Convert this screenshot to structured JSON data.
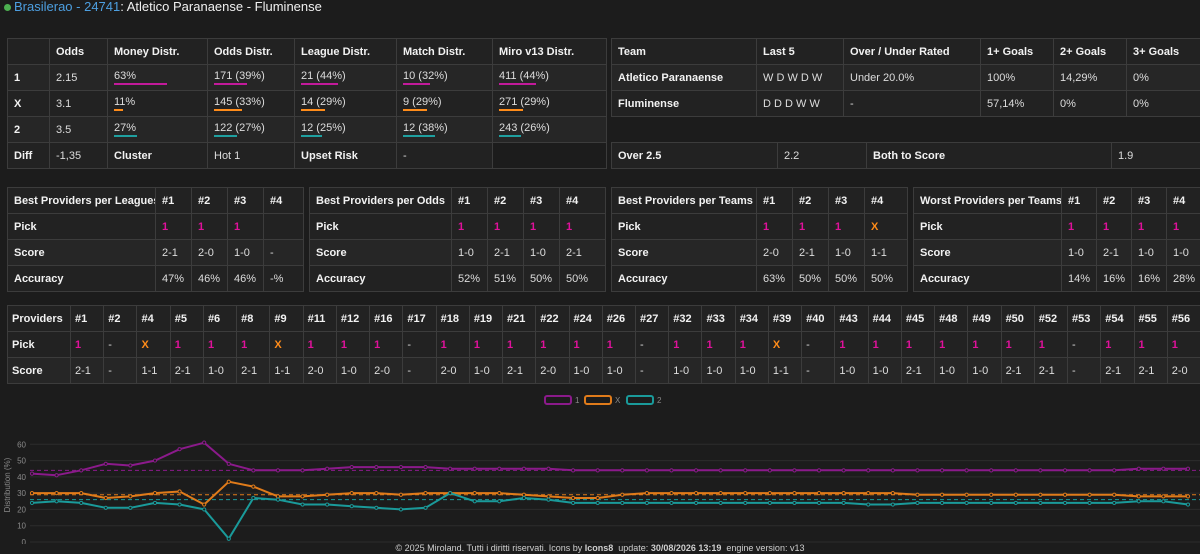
{
  "header": {
    "league": "Brasilerao",
    "match_id": "24741",
    "match": "Atletico Paranaense - Fluminense"
  },
  "odds_table": {
    "headers": [
      "",
      "Odds",
      "Money Distr.",
      "Odds Distr.",
      "League Distr.",
      "Match Distr.",
      "Miro v13 Distr."
    ],
    "rows": [
      {
        "label": "1",
        "odds": "2.15",
        "money": "63%",
        "odds_distr": "171 (39%)",
        "league": "21 (44%)",
        "match": "10 (32%)",
        "miro": "411 (44%)"
      },
      {
        "label": "X",
        "odds": "3.1",
        "money": "11%",
        "odds_distr": "145 (33%)",
        "league": "14 (29%)",
        "match": "9 (29%)",
        "miro": "271 (29%)"
      },
      {
        "label": "2",
        "odds": "3.5",
        "money": "27%",
        "odds_distr": "122 (27%)",
        "league": "12 (25%)",
        "match": "12 (38%)",
        "miro": "243 (26%)"
      }
    ],
    "bar_fractions": [
      [
        0.63,
        0.39,
        0.44,
        0.32,
        0.44
      ],
      [
        0.11,
        0.33,
        0.29,
        0.29,
        0.29
      ],
      [
        0.27,
        0.27,
        0.25,
        0.38,
        0.26
      ]
    ],
    "diff_row": {
      "label": "Diff",
      "value": "-1,35",
      "cluster_label": "Cluster",
      "cluster_value": "Hot 1",
      "upset_label": "Upset Risk",
      "upset_value": "-"
    }
  },
  "team_table": {
    "headers": [
      "Team",
      "Last 5",
      "Over / Under Rated",
      "1+ Goals",
      "2+ Goals",
      "3+ Goals"
    ],
    "rows": [
      {
        "team": "Atletico Paranaense",
        "last5": "W D W D W",
        "rated": "Under 20.0%",
        "g1": "100%",
        "g2": "14,29%",
        "g3": "0%"
      },
      {
        "team": "Fluminense",
        "last5": "D D D W W",
        "rated": "-",
        "g1": "57,14%",
        "g2": "0%",
        "g3": "0%"
      }
    ]
  },
  "over_table": {
    "over_label": "Over 2.5",
    "over_value": "2.2",
    "bts_label": "Both to Score",
    "bts_value": "1.9"
  },
  "provider_tables": [
    {
      "title": "Best Providers per Leagues",
      "cols": [
        "#1",
        "#2",
        "#3",
        "#4"
      ],
      "picks": [
        "1",
        "1",
        "1",
        ""
      ],
      "scores": [
        "2-1",
        "2-0",
        "1-0",
        "-"
      ],
      "accuracy": [
        "47%",
        "46%",
        "46%",
        "-%"
      ]
    },
    {
      "title": "Best Providers per Odds",
      "cols": [
        "#1",
        "#2",
        "#3",
        "#4"
      ],
      "picks": [
        "1",
        "1",
        "1",
        "1"
      ],
      "scores": [
        "1-0",
        "2-1",
        "1-0",
        "2-1"
      ],
      "accuracy": [
        "52%",
        "51%",
        "50%",
        "50%"
      ]
    },
    {
      "title": "Best Providers per Teams",
      "cols": [
        "#1",
        "#2",
        "#3",
        "#4"
      ],
      "picks": [
        "1",
        "1",
        "1",
        "X"
      ],
      "scores": [
        "2-0",
        "2-1",
        "1-0",
        "1-1"
      ],
      "accuracy": [
        "63%",
        "50%",
        "50%",
        "50%"
      ]
    },
    {
      "title": "Worst Providers per Teams",
      "cols": [
        "#1",
        "#2",
        "#3",
        "#4"
      ],
      "picks": [
        "1",
        "1",
        "1",
        "1"
      ],
      "scores": [
        "1-0",
        "2-1",
        "1-0",
        "1-0"
      ],
      "accuracy": [
        "14%",
        "16%",
        "16%",
        "28%"
      ]
    }
  ],
  "row_labels": {
    "pick": "Pick",
    "score": "Score",
    "accuracy": "Accuracy"
  },
  "providers": {
    "title": "Providers",
    "cols": [
      "#1",
      "#2",
      "#4",
      "#5",
      "#6",
      "#8",
      "#9",
      "#11",
      "#12",
      "#16",
      "#17",
      "#18",
      "#19",
      "#21",
      "#22",
      "#24",
      "#26",
      "#27",
      "#32",
      "#33",
      "#34",
      "#39",
      "#40",
      "#43",
      "#44",
      "#45",
      "#48",
      "#49",
      "#50",
      "#52",
      "#53",
      "#54",
      "#55",
      "#56"
    ],
    "picks": [
      "1",
      "-",
      "X",
      "1",
      "1",
      "1",
      "X",
      "1",
      "1",
      "1",
      "-",
      "1",
      "1",
      "1",
      "1",
      "1",
      "1",
      "-",
      "1",
      "1",
      "1",
      "X",
      "-",
      "1",
      "1",
      "1",
      "1",
      "1",
      "1",
      "1",
      "-",
      "1",
      "1",
      "1"
    ],
    "scores": [
      "2-1",
      "-",
      "1-1",
      "2-1",
      "1-0",
      "2-1",
      "1-1",
      "2-0",
      "1-0",
      "2-0",
      "-",
      "2-0",
      "1-0",
      "2-1",
      "2-0",
      "1-0",
      "1-0",
      "-",
      "1-0",
      "1-0",
      "1-0",
      "1-1",
      "-",
      "1-0",
      "1-0",
      "2-1",
      "1-0",
      "1-0",
      "2-1",
      "2-1",
      "-",
      "2-1",
      "2-1",
      "2-0"
    ]
  },
  "chart_data": {
    "type": "line",
    "ylabel": "Distribution (%)",
    "ylim": [
      0,
      70
    ],
    "yticks": [
      0,
      10,
      20,
      30,
      40,
      50,
      60
    ],
    "legend_position": "top",
    "series": [
      {
        "name": "1",
        "color": "#8b1a8b",
        "values": [
          42,
          41,
          44,
          48,
          47,
          50,
          57,
          61,
          48,
          44,
          44,
          44,
          45,
          46,
          46,
          46,
          46,
          45,
          45,
          45,
          45,
          45,
          44,
          44,
          44,
          44,
          44,
          44,
          44,
          44,
          44,
          44,
          44,
          44,
          44,
          44,
          44,
          44,
          44,
          44,
          44,
          44,
          44,
          44,
          44,
          45,
          45,
          45
        ]
      },
      {
        "name": "X",
        "color": "#e07b1a",
        "values": [
          30,
          30,
          30,
          27,
          28,
          30,
          31,
          23,
          37,
          34,
          28,
          28,
          29,
          30,
          30,
          29,
          30,
          30,
          30,
          30,
          29,
          28,
          27,
          27,
          29,
          30,
          30,
          30,
          30,
          30,
          30,
          30,
          30,
          30,
          30,
          30,
          29,
          29,
          29,
          29,
          29,
          29,
          29,
          29,
          29,
          28,
          28,
          28
        ]
      },
      {
        "name": "2",
        "color": "#1a9a9a",
        "values": [
          24,
          25,
          24,
          21,
          21,
          24,
          23,
          20,
          2,
          27,
          26,
          23,
          23,
          22,
          21,
          20,
          21,
          30,
          25,
          25,
          27,
          26,
          24,
          24,
          24,
          24,
          24,
          24,
          24,
          24,
          24,
          24,
          24,
          24,
          23,
          23,
          24,
          24,
          24,
          24,
          24,
          24,
          24,
          24,
          24,
          25,
          25,
          23
        ]
      }
    ],
    "reference_lines": [
      {
        "y": 44,
        "color": "#8b1a8b"
      },
      {
        "y": 29,
        "color": "#e07b1a"
      },
      {
        "y": 26,
        "color": "#1a9a9a"
      }
    ]
  },
  "footer": {
    "copyright": "© 2025 Miroland. Tutti i diritti riservati. Icons by",
    "icons": "Icons8",
    "update_label": "update:",
    "update_value": "30/08/2026 13:19",
    "engine": "engine version: v13"
  }
}
